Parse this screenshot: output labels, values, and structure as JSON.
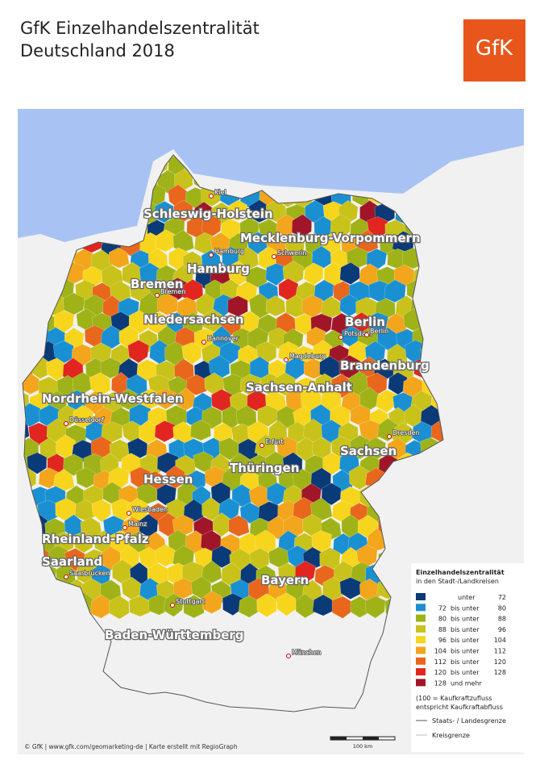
{
  "header": {
    "title": "GfK Einzelhandelszentralität",
    "subtitle": "Deutschland 2018",
    "logo": "GfK"
  },
  "states": [
    "Schleswig-Holstein",
    "Mecklenburg-Vorpommern",
    "Hamburg",
    "Bremen",
    "Niedersachsen",
    "Berlin",
    "Brandenburg",
    "Sachsen-Anhalt",
    "Nordrhein-Westfalen",
    "Sachsen",
    "Thüringen",
    "Hessen",
    "Rheinland-Pfalz",
    "Saarland",
    "Bayern",
    "Baden-Württemberg"
  ],
  "cities": [
    "Kiel",
    "Hamburg",
    "Schwerin",
    "Bremen",
    "Hannover",
    "Potsdam",
    "Berlin",
    "Magdeburg",
    "Düsseldorf",
    "Erfurt",
    "Dresden",
    "Wiesbaden",
    "Mainz",
    "Saarbrücken",
    "Stuttgart",
    "München"
  ],
  "legend": {
    "title": "Einzelhandelszentralität",
    "subtitle": "in den Stadt-/Landkreisen",
    "items": [
      {
        "color": "#0b3a78",
        "word": "unter",
        "to": 72
      },
      {
        "color": "#1a90d2",
        "from": 72,
        "word": "bis unter",
        "to": 80
      },
      {
        "color": "#9fb318",
        "from": 80,
        "word": "bis unter",
        "to": 88
      },
      {
        "color": "#c9c21a",
        "from": 88,
        "word": "bis unter",
        "to": 96
      },
      {
        "color": "#f7d51c",
        "from": 96,
        "word": "bis unter",
        "to": 104
      },
      {
        "color": "#f3a51c",
        "from": 104,
        "word": "bis unter",
        "to": 112
      },
      {
        "color": "#e8671c",
        "from": 112,
        "word": "bis unter",
        "to": 120
      },
      {
        "color": "#e0261f",
        "from": 120,
        "word": "bis unter",
        "to": 128
      },
      {
        "color": "#a01628",
        "from": 128,
        "word": "und mehr"
      }
    ],
    "note": [
      "(100 = Kaufkraftzufluss",
      "entspricht Kaufkraftabfluss"
    ],
    "border_state": "Staats- / Landesgrenze",
    "border_district": "Kreisgrenze"
  },
  "footer": {
    "credit": "© GfK | www.gfk.com/geomarketing-de | Karte erstellt mit RegioGraph",
    "scale": "100 km"
  }
}
